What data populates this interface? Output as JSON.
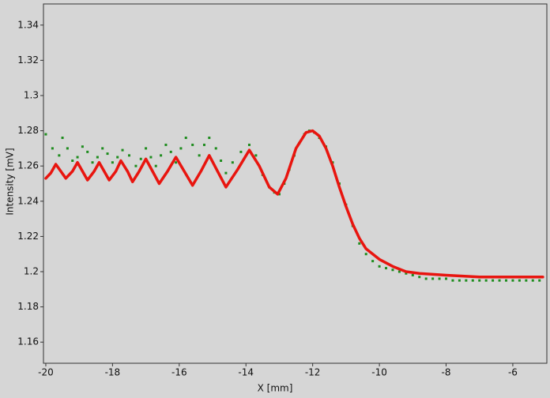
{
  "chart_data": {
    "type": "line",
    "x_label": "X [mm]",
    "y_label": "Intensity [mV]",
    "xlim": [
      -20.07,
      -4.98
    ],
    "ylim": [
      1.148,
      1.352
    ],
    "xticks": [
      -20,
      -18,
      -16,
      -14,
      -12,
      -10,
      -8,
      -6
    ],
    "yticks": [
      1.16,
      1.18,
      1.2,
      1.22,
      1.24,
      1.26,
      1.28,
      1.3,
      1.32,
      1.34
    ],
    "series": [
      {
        "color": "#1e8c1e",
        "mode": "markers",
        "x": [
          -20.0,
          -19.8,
          -19.6,
          -19.5,
          -19.35,
          -19.2,
          -19.05,
          -18.9,
          -18.75,
          -18.6,
          -18.45,
          -18.3,
          -18.15,
          -18.0,
          -17.85,
          -17.7,
          -17.5,
          -17.3,
          -17.15,
          -17.0,
          -16.85,
          -16.7,
          -16.55,
          -16.4,
          -16.25,
          -16.1,
          -15.95,
          -15.8,
          -15.6,
          -15.4,
          -15.25,
          -15.1,
          -14.9,
          -14.75,
          -14.6,
          -14.4,
          -14.15,
          -13.9,
          -13.7,
          -13.5,
          -13.3,
          -13.15,
          -13.0,
          -12.85,
          -12.7,
          -12.55,
          -12.4,
          -12.25,
          -12.1,
          -11.95,
          -11.8,
          -11.6,
          -11.4,
          -11.2,
          -11.0,
          -10.8,
          -10.6,
          -10.4,
          -10.2,
          -10.0,
          -9.8,
          -9.6,
          -9.4,
          -9.2,
          -9.0,
          -8.8,
          -8.6,
          -8.4,
          -8.2,
          -8.0,
          -7.8,
          -7.6,
          -7.4,
          -7.2,
          -7.0,
          -6.8,
          -6.6,
          -6.4,
          -6.2,
          -6.0,
          -5.8,
          -5.6,
          -5.4,
          -5.2
        ],
        "values": [
          1.278,
          1.27,
          1.266,
          1.276,
          1.27,
          1.263,
          1.265,
          1.271,
          1.268,
          1.262,
          1.265,
          1.27,
          1.267,
          1.262,
          1.265,
          1.269,
          1.266,
          1.26,
          1.264,
          1.27,
          1.265,
          1.26,
          1.266,
          1.272,
          1.268,
          1.262,
          1.27,
          1.276,
          1.272,
          1.266,
          1.272,
          1.276,
          1.27,
          1.263,
          1.256,
          1.262,
          1.268,
          1.272,
          1.266,
          1.255,
          1.248,
          1.245,
          1.244,
          1.25,
          1.258,
          1.266,
          1.273,
          1.278,
          1.28,
          1.279,
          1.276,
          1.271,
          1.262,
          1.25,
          1.238,
          1.226,
          1.216,
          1.21,
          1.206,
          1.203,
          1.202,
          1.201,
          1.2,
          1.199,
          1.198,
          1.197,
          1.196,
          1.196,
          1.196,
          1.196,
          1.195,
          1.195,
          1.195,
          1.195,
          1.195,
          1.195,
          1.195,
          1.195,
          1.195,
          1.195,
          1.195,
          1.195,
          1.195,
          1.195
        ]
      },
      {
        "color": "#e8150f",
        "mode": "line",
        "x": [
          -20.0,
          -19.85,
          -19.7,
          -19.55,
          -19.4,
          -19.2,
          -19.05,
          -18.9,
          -18.75,
          -18.55,
          -18.4,
          -18.25,
          -18.1,
          -17.9,
          -17.75,
          -17.55,
          -17.4,
          -17.2,
          -17.0,
          -16.8,
          -16.6,
          -16.35,
          -16.1,
          -15.85,
          -15.6,
          -15.35,
          -15.1,
          -14.85,
          -14.6,
          -14.25,
          -13.9,
          -13.6,
          -13.3,
          -13.05,
          -12.8,
          -12.5,
          -12.2,
          -12.0,
          -11.8,
          -11.6,
          -11.4,
          -11.2,
          -11.0,
          -10.8,
          -10.6,
          -10.4,
          -10.0,
          -9.6,
          -9.2,
          -8.8,
          -8.0,
          -7.0,
          -6.0,
          -5.1
        ],
        "values": [
          1.253,
          1.256,
          1.261,
          1.257,
          1.253,
          1.257,
          1.262,
          1.257,
          1.252,
          1.257,
          1.262,
          1.257,
          1.252,
          1.257,
          1.263,
          1.257,
          1.251,
          1.257,
          1.264,
          1.257,
          1.25,
          1.257,
          1.265,
          1.257,
          1.249,
          1.257,
          1.266,
          1.257,
          1.248,
          1.258,
          1.269,
          1.26,
          1.248,
          1.244,
          1.253,
          1.27,
          1.279,
          1.28,
          1.277,
          1.27,
          1.26,
          1.248,
          1.237,
          1.227,
          1.219,
          1.213,
          1.207,
          1.203,
          1.2,
          1.199,
          1.198,
          1.197,
          1.197,
          1.197
        ]
      }
    ]
  }
}
